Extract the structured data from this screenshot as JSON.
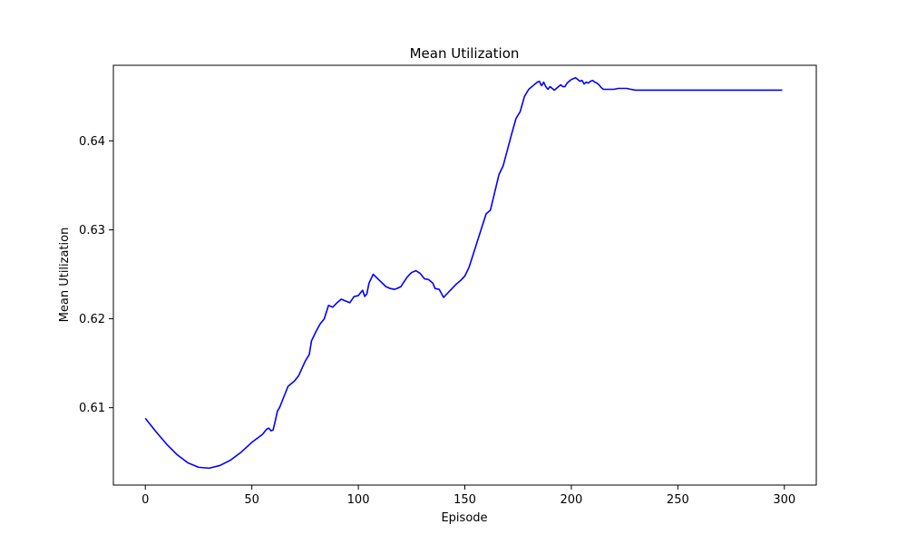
{
  "chart_data": {
    "type": "line",
    "title": "Mean Utilization",
    "xlabel": "Episode",
    "ylabel": "Mean Utilization",
    "xlim": [
      -15,
      315
    ],
    "ylim": [
      0.6013,
      0.6485
    ],
    "xticks": [
      0,
      50,
      100,
      150,
      200,
      250,
      300
    ],
    "yticks": [
      0.61,
      0.62,
      0.63,
      0.64
    ],
    "xtick_labels": [
      "0",
      "50",
      "100",
      "150",
      "200",
      "250",
      "300"
    ],
    "ytick_labels": [
      "0.61",
      "0.62",
      "0.63",
      "0.64"
    ],
    "grid": false,
    "color": "#0000ff",
    "series": [
      {
        "x": [
          0,
          5,
          10,
          15,
          20,
          25,
          30,
          35,
          40,
          45,
          50,
          55,
          57,
          58,
          59,
          60,
          61,
          62,
          63,
          65,
          67,
          70,
          72,
          75,
          77,
          78,
          80,
          82,
          84,
          86,
          88,
          90,
          92,
          94,
          96,
          98,
          100,
          102,
          103,
          104,
          105,
          107,
          110,
          113,
          115,
          117,
          118,
          120,
          121,
          123,
          125,
          127,
          129,
          131,
          133,
          135,
          136,
          138,
          140,
          142,
          144,
          146,
          148,
          150,
          152,
          154,
          156,
          158,
          160,
          162,
          164,
          166,
          168,
          170,
          172,
          174,
          176,
          178,
          180,
          182,
          184,
          185,
          186,
          187,
          188,
          189,
          190,
          191,
          192,
          193,
          194,
          195,
          196,
          197,
          198,
          199,
          200,
          201,
          202,
          203,
          204,
          205,
          206,
          207,
          208,
          209,
          210,
          211,
          212,
          213,
          214,
          215,
          216,
          218,
          220,
          222,
          224,
          226,
          228,
          230,
          240,
          250,
          260,
          270,
          280,
          290,
          299
        ],
        "y": [
          0.6088,
          0.6073,
          0.6059,
          0.6047,
          0.6038,
          0.6033,
          0.6032,
          0.6035,
          0.6041,
          0.605,
          0.6061,
          0.607,
          0.6076,
          0.6077,
          0.6074,
          0.6075,
          0.6085,
          0.6096,
          0.61,
          0.6112,
          0.6124,
          0.613,
          0.6136,
          0.6152,
          0.616,
          0.6175,
          0.6185,
          0.6194,
          0.62,
          0.6215,
          0.6213,
          0.6218,
          0.6222,
          0.622,
          0.6218,
          0.6225,
          0.6226,
          0.6232,
          0.6225,
          0.6228,
          0.624,
          0.625,
          0.6243,
          0.6236,
          0.6234,
          0.6233,
          0.6234,
          0.6236,
          0.624,
          0.6247,
          0.6252,
          0.6254,
          0.6251,
          0.6245,
          0.6244,
          0.624,
          0.6234,
          0.6233,
          0.6224,
          0.6229,
          0.6234,
          0.6239,
          0.6243,
          0.6248,
          0.6258,
          0.6273,
          0.6288,
          0.6303,
          0.6318,
          0.6322,
          0.6342,
          0.6362,
          0.6372,
          0.639,
          0.6408,
          0.6425,
          0.6433,
          0.645,
          0.6458,
          0.6462,
          0.6466,
          0.6467,
          0.6462,
          0.6466,
          0.6461,
          0.6458,
          0.6461,
          0.6459,
          0.6457,
          0.6459,
          0.6461,
          0.6463,
          0.6461,
          0.6461,
          0.6465,
          0.6467,
          0.6469,
          0.647,
          0.6471,
          0.6469,
          0.6467,
          0.6468,
          0.6464,
          0.6466,
          0.6465,
          0.6467,
          0.6468,
          0.6466,
          0.6465,
          0.6463,
          0.646,
          0.6458,
          0.6458,
          0.6458,
          0.6458,
          0.6459,
          0.6459,
          0.6459,
          0.6458,
          0.6457,
          0.6457,
          0.6457,
          0.6457,
          0.6457,
          0.6457,
          0.6457,
          0.6457
        ]
      }
    ]
  }
}
